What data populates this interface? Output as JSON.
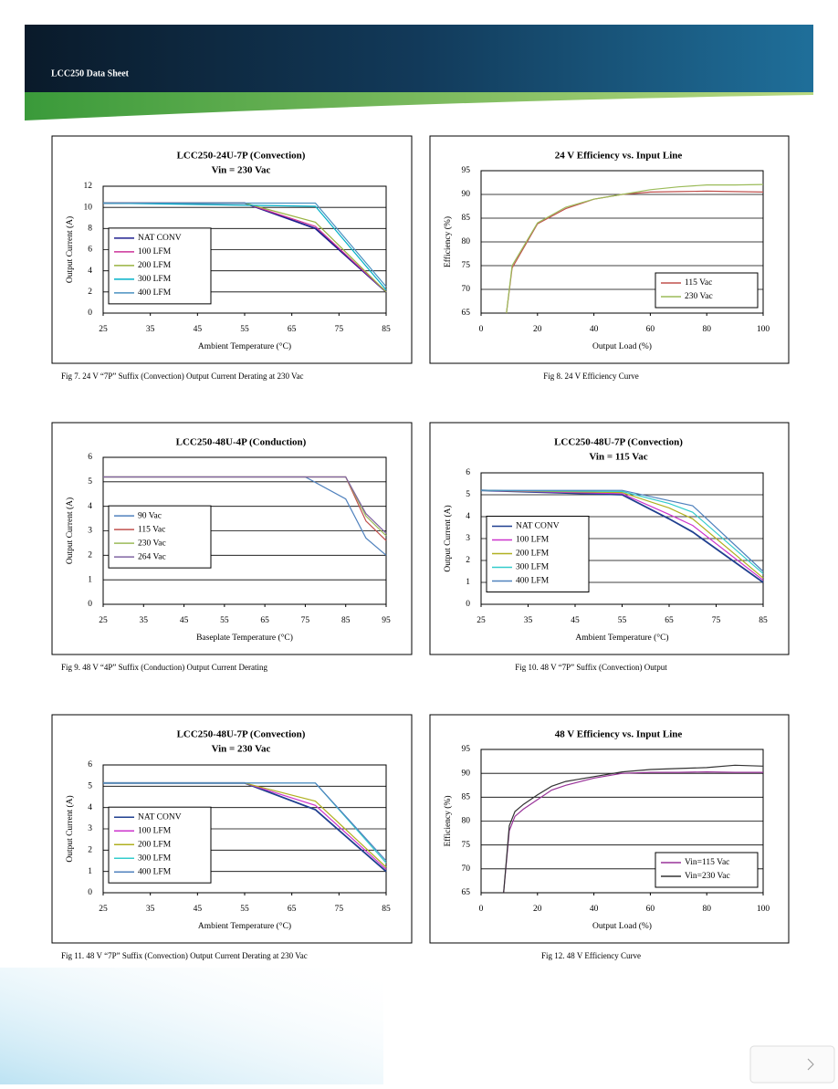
{
  "header": {
    "title": "LCC250 Data Sheet"
  },
  "chart_data": [
    {
      "type": "line",
      "title": "LCC250-24U-7P (Convection)",
      "subtitle": "Vin = 230 Vac",
      "x_label": "Ambient Temperature (°C)",
      "y_label": "Output Current (A)",
      "xlim": [
        25,
        85
      ],
      "xticks": [
        25,
        35,
        45,
        55,
        65,
        75,
        85
      ],
      "ylim": [
        0,
        12
      ],
      "yticks": [
        0,
        2,
        4,
        6,
        8,
        10,
        12
      ],
      "grid": true,
      "legend": "left",
      "series": [
        {
          "name": "NAT CONV",
          "color": "#1f1f8f",
          "x": [
            25,
            55,
            70,
            85
          ],
          "values": [
            10.4,
            10.4,
            8,
            2
          ]
        },
        {
          "name": "100 LFM",
          "color": "#cc3399",
          "x": [
            25,
            55,
            70,
            85
          ],
          "values": [
            10.4,
            10.4,
            8.2,
            2
          ]
        },
        {
          "name": "200 LFM",
          "color": "#99b340",
          "x": [
            25,
            55,
            70,
            85
          ],
          "values": [
            10.4,
            10.4,
            8.6,
            2
          ]
        },
        {
          "name": "300 LFM",
          "color": "#00b0c8",
          "x": [
            25,
            70,
            85
          ],
          "values": [
            10.4,
            10.1,
            2.2
          ]
        },
        {
          "name": "400 LFM",
          "color": "#4a90c0",
          "x": [
            25,
            70,
            85
          ],
          "values": [
            10.4,
            10.4,
            2.5
          ]
        }
      ],
      "caption": "Fig 7. 24 V “7P” Suffix (Convection) Output Current Derating at 230 Vac"
    },
    {
      "type": "line",
      "title": "24 V Efficiency vs. Input Line",
      "x_label": "Output Load (%)",
      "y_label": "Efficiency (%)",
      "xlim": [
        0,
        100
      ],
      "xticks": [
        0,
        20,
        40,
        60,
        80,
        100
      ],
      "ylim": [
        65,
        95
      ],
      "yticks": [
        65,
        70,
        75,
        80,
        85,
        90,
        95
      ],
      "grid": true,
      "legend": "lower right",
      "series": [
        {
          "name": "115 Vac",
          "color": "#c0504d",
          "x": [
            9,
            11,
            20,
            30,
            40,
            50,
            60,
            70,
            80,
            90,
            100
          ],
          "values": [
            65,
            74.5,
            83.8,
            87,
            89,
            90,
            90.5,
            90.6,
            90.7,
            90.6,
            90.5
          ]
        },
        {
          "name": "230 Vac",
          "color": "#9bbb59",
          "x": [
            9,
            11,
            20,
            30,
            40,
            50,
            60,
            70,
            80,
            90,
            100
          ],
          "values": [
            65,
            75,
            84,
            87.3,
            89,
            90,
            91,
            91.6,
            92,
            92,
            92.1
          ]
        }
      ],
      "caption": "Fig 8. 24 V Efficiency Curve"
    },
    {
      "type": "line",
      "title": "LCC250-48U-4P (Conduction)",
      "x_label": "Baseplate Temperature (°C)",
      "y_label": "Output Current (A)",
      "xlim": [
        25,
        95
      ],
      "xticks": [
        25,
        35,
        45,
        55,
        65,
        75,
        85,
        95
      ],
      "ylim": [
        0,
        6
      ],
      "yticks": [
        0,
        1,
        2,
        3,
        4,
        5,
        6
      ],
      "grid": true,
      "legend": "left",
      "series": [
        {
          "name": "90 Vac",
          "color": "#4f81bd",
          "x": [
            25,
            75,
            85,
            90,
            95
          ],
          "values": [
            5.2,
            5.2,
            4.3,
            2.7,
            2
          ]
        },
        {
          "name": "115 Vac",
          "color": "#c0504d",
          "x": [
            25,
            85,
            90,
            95
          ],
          "values": [
            5.2,
            5.2,
            3.4,
            2.6
          ]
        },
        {
          "name": "230 Vac",
          "color": "#9bbb59",
          "x": [
            25,
            85,
            90,
            95
          ],
          "values": [
            5.2,
            5.2,
            3.6,
            2.8
          ]
        },
        {
          "name": "264 Vac",
          "color": "#8064a2",
          "x": [
            25,
            85,
            90,
            95
          ],
          "values": [
            5.2,
            5.2,
            3.7,
            2.9
          ]
        }
      ],
      "caption": "Fig 9. 48 V “4P” Suffix (Conduction) Output Current Derating"
    },
    {
      "type": "line",
      "title": "LCC250-48U-7P (Convection)",
      "subtitle": "Vin = 115 Vac",
      "x_label": "Ambient Temperature (°C)",
      "y_label": "Output Current (A)",
      "xlim": [
        25,
        85
      ],
      "xticks": [
        25,
        35,
        45,
        55,
        65,
        75,
        85
      ],
      "ylim": [
        0,
        6
      ],
      "yticks": [
        0,
        1,
        2,
        3,
        4,
        5,
        6
      ],
      "grid": true,
      "legend": "left",
      "series": [
        {
          "name": "NAT CONV",
          "color": "#1f3f8f",
          "x": [
            25,
            55,
            65,
            70,
            85
          ],
          "values": [
            5.2,
            5,
            3.9,
            3.3,
            1
          ]
        },
        {
          "name": "100 LFM",
          "color": "#cc33cc",
          "x": [
            25,
            55,
            65,
            70,
            85
          ],
          "values": [
            5.2,
            5.05,
            4.1,
            3.6,
            1.1
          ]
        },
        {
          "name": "200 LFM",
          "color": "#b0b020",
          "x": [
            25,
            55,
            65,
            70,
            85
          ],
          "values": [
            5.2,
            5.1,
            4.4,
            3.9,
            1.2
          ]
        },
        {
          "name": "300 LFM",
          "color": "#33cccc",
          "x": [
            25,
            55,
            65,
            70,
            85
          ],
          "values": [
            5.2,
            5.15,
            4.6,
            4.2,
            1.4
          ]
        },
        {
          "name": "400 LFM",
          "color": "#4f81bd",
          "x": [
            25,
            55,
            70,
            85
          ],
          "values": [
            5.2,
            5.2,
            4.5,
            1.5
          ]
        }
      ],
      "caption": "Fig 10. 48 V “7P” Suffix (Convection) Output"
    },
    {
      "type": "line",
      "title": "LCC250-48U-7P (Convection)",
      "subtitle": "Vin = 230 Vac",
      "x_label": "Ambient Temperature (°C)",
      "y_label": "Output Current (A)",
      "xlim": [
        25,
        85
      ],
      "xticks": [
        25,
        35,
        45,
        55,
        65,
        75,
        85
      ],
      "ylim": [
        0,
        6
      ],
      "yticks": [
        0,
        1,
        2,
        3,
        4,
        5,
        6
      ],
      "grid": true,
      "legend": "left",
      "series": [
        {
          "name": "NAT CONV",
          "color": "#1f3f8f",
          "x": [
            25,
            55,
            70,
            85
          ],
          "values": [
            5.15,
            5.15,
            3.9,
            1
          ]
        },
        {
          "name": "100 LFM",
          "color": "#cc33cc",
          "x": [
            25,
            55,
            70,
            85
          ],
          "values": [
            5.15,
            5.15,
            4.1,
            1.1
          ]
        },
        {
          "name": "200 LFM",
          "color": "#b0b020",
          "x": [
            25,
            55,
            70,
            85
          ],
          "values": [
            5.15,
            5.15,
            4.3,
            1.2
          ]
        },
        {
          "name": "300 LFM",
          "color": "#33cccc",
          "x": [
            25,
            70,
            85
          ],
          "values": [
            5.15,
            5.15,
            1.4
          ]
        },
        {
          "name": "400 LFM",
          "color": "#4f81bd",
          "x": [
            25,
            70,
            85
          ],
          "values": [
            5.15,
            5.15,
            1.5
          ]
        }
      ],
      "caption": "Fig 11. 48 V “7P” Suffix (Convection) Output Current Derating at 230 Vac"
    },
    {
      "type": "line",
      "title": "48 V Efficiency vs. Input Line",
      "x_label": "Output Load (%)",
      "y_label": "Efficiency (%)",
      "xlim": [
        0,
        100
      ],
      "xticks": [
        0,
        20,
        40,
        60,
        80,
        100
      ],
      "ylim": [
        65,
        95
      ],
      "yticks": [
        65,
        70,
        75,
        80,
        85,
        90,
        95
      ],
      "grid": true,
      "legend": "lower right",
      "series": [
        {
          "name": "Vin=115 Vac",
          "color": "#993399",
          "x": [
            8,
            10,
            12,
            15,
            20,
            25,
            30,
            40,
            50,
            60,
            70,
            80,
            90,
            100
          ],
          "values": [
            65,
            78,
            81,
            82.5,
            84.5,
            86.5,
            87.5,
            89,
            90,
            90.2,
            90.2,
            90.3,
            90.2,
            90.2
          ]
        },
        {
          "name": "Vin=230 Vac",
          "color": "#333333",
          "x": [
            8,
            10,
            12,
            15,
            20,
            25,
            30,
            40,
            50,
            60,
            70,
            80,
            90,
            100
          ],
          "values": [
            65,
            79,
            82,
            83.5,
            85.5,
            87.3,
            88.3,
            89.3,
            90.3,
            90.8,
            91,
            91.2,
            91.7,
            91.5
          ]
        }
      ],
      "caption": "Fig 12. 48 V Efficiency Curve"
    }
  ]
}
